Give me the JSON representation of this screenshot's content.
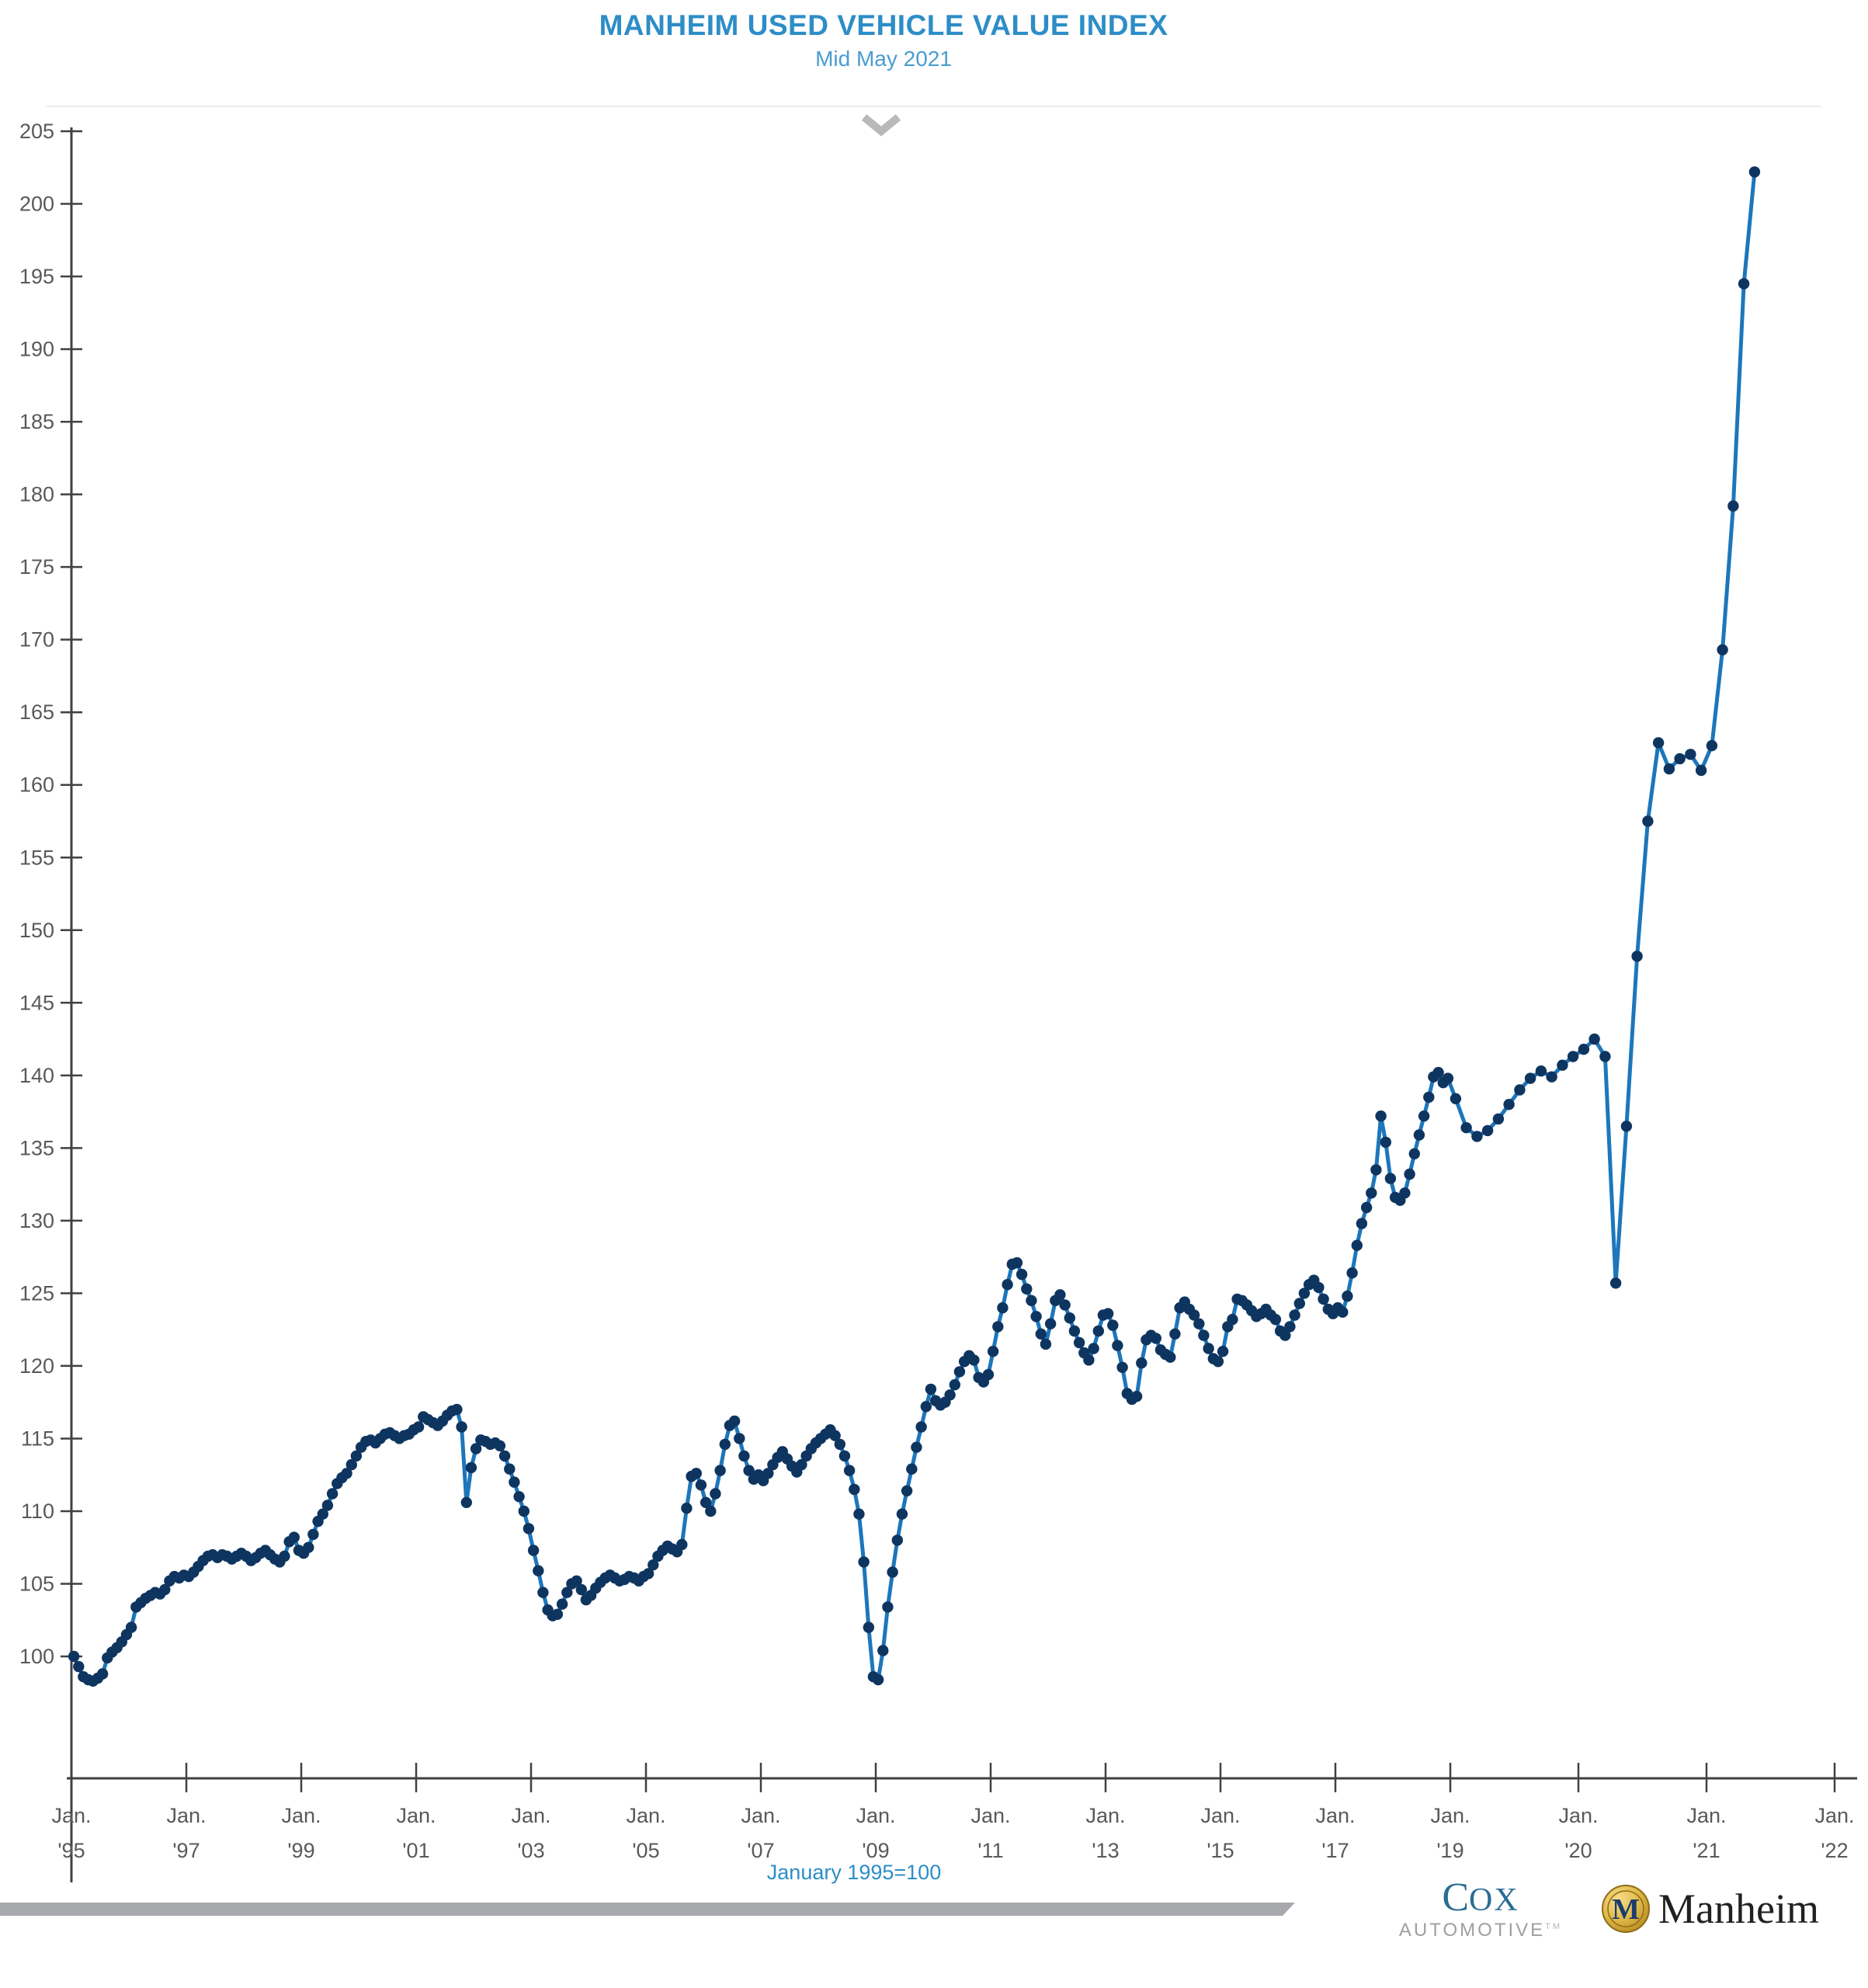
{
  "header": {
    "title": "MANHEIM USED VEHICLE VALUE INDEX",
    "subtitle": "Mid May 2021"
  },
  "footer": {
    "index_note": "January 1995=100"
  },
  "logos": {
    "cox_line1_initial": "C",
    "cox_line1_rest": "OX",
    "cox_line2": "AUTOMOTIVE",
    "cox_tm": "TM",
    "manheim_medallion_letter": "M",
    "manheim_wordmark": "Manheim"
  },
  "icons": {
    "chevron_down": "chevron-down"
  },
  "colors": {
    "title_blue": "#2d8dc7",
    "subtitle_blue": "#4a9ccf",
    "line_blue": "#1d76bb",
    "dot_navy": "#0e3560",
    "axis_gray": "#414042",
    "tick_text_gray": "#58595b",
    "rule_gray": "#ebebeb",
    "chevron_gray": "#b7b9bb",
    "footer_bar_gray": "#a7a9ac",
    "cox_blue": "#2a6d94",
    "cox_gray": "#9d9fa2",
    "manheim_gold": "#d0a02e",
    "manheim_navy": "#1d3d6b"
  },
  "chart_data": {
    "type": "line",
    "title": "MANHEIM USED VEHICLE VALUE INDEX",
    "subtitle": "Mid May 2021",
    "series_name": "Manheim Used Vehicle Value Index",
    "frequency": "monthly",
    "start": "Jan 1995",
    "end": "Mid May 2021",
    "xlabel": "",
    "ylabel": "Index (January 1995=100)",
    "ylim": [
      91.5,
      205
    ],
    "grid": false,
    "legend": "none",
    "y_ticks": [
      205,
      200,
      195,
      190,
      185,
      180,
      175,
      170,
      165,
      160,
      155,
      150,
      145,
      140,
      135,
      130,
      125,
      120,
      115,
      110,
      105,
      100
    ],
    "x_ticks": [
      {
        "line1": "Jan.",
        "line2": "'95",
        "month": 0
      },
      {
        "line1": "Jan.",
        "line2": "'97",
        "month": 24
      },
      {
        "line1": "Jan.",
        "line2": "'99",
        "month": 48
      },
      {
        "line1": "Jan.",
        "line2": "'01",
        "month": 72
      },
      {
        "line1": "Jan.",
        "line2": "'03",
        "month": 96
      },
      {
        "line1": "Jan.",
        "line2": "'05",
        "month": 120
      },
      {
        "line1": "Jan.",
        "line2": "'07",
        "month": 144
      },
      {
        "line1": "Jan.",
        "line2": "'09",
        "month": 168
      },
      {
        "line1": "Jan.",
        "line2": "'11",
        "month": 192
      },
      {
        "line1": "Jan.",
        "line2": "'13",
        "month": 216
      },
      {
        "line1": "Jan.",
        "line2": "'15",
        "month": 240
      },
      {
        "line1": "Jan.",
        "line2": "'17",
        "month": 264
      },
      {
        "line1": "Jan.",
        "line2": "'19",
        "month": 288
      },
      {
        "line1": "Jan.",
        "line2": "'20",
        "month": 300
      },
      {
        "line1": "Jan.",
        "line2": "'21",
        "month": 312
      },
      {
        "line1": "Jan.",
        "line2": "'22",
        "month": 324
      }
    ],
    "values": [
      100.0,
      99.3,
      98.6,
      98.4,
      98.3,
      98.5,
      98.8,
      99.9,
      100.3,
      100.6,
      101.0,
      101.5,
      102.0,
      103.4,
      103.7,
      104.0,
      104.2,
      104.4,
      104.3,
      104.6,
      105.2,
      105.5,
      105.4,
      105.6,
      105.5,
      105.8,
      106.2,
      106.6,
      106.9,
      107.0,
      106.8,
      107.0,
      106.9,
      106.7,
      106.9,
      107.1,
      106.9,
      106.6,
      106.8,
      107.1,
      107.3,
      107.0,
      106.7,
      106.5,
      106.9,
      107.9,
      108.2,
      107.3,
      107.1,
      107.5,
      108.4,
      109.3,
      109.8,
      110.4,
      111.2,
      111.9,
      112.3,
      112.6,
      113.2,
      113.8,
      114.4,
      114.8,
      114.9,
      114.7,
      115.0,
      115.3,
      115.4,
      115.2,
      115.0,
      115.2,
      115.3,
      115.6,
      115.8,
      116.5,
      116.3,
      116.1,
      115.9,
      116.2,
      116.6,
      116.9,
      117.0,
      115.8,
      110.6,
      113.0,
      114.3,
      114.9,
      114.8,
      114.6,
      114.7,
      114.5,
      113.8,
      112.9,
      112.0,
      111.0,
      110.0,
      108.8,
      107.3,
      105.9,
      104.4,
      103.2,
      102.8,
      102.9,
      103.6,
      104.4,
      105.0,
      105.2,
      104.6,
      103.9,
      104.2,
      104.7,
      105.1,
      105.4,
      105.6,
      105.4,
      105.2,
      105.3,
      105.5,
      105.4,
      105.2,
      105.5,
      105.7,
      106.3,
      106.9,
      107.3,
      107.6,
      107.4,
      107.2,
      107.7,
      110.2,
      112.4,
      112.6,
      111.8,
      110.6,
      110.0,
      111.2,
      112.8,
      114.6,
      115.9,
      116.2,
      115.0,
      113.8,
      112.8,
      112.2,
      112.5,
      112.1,
      112.6,
      113.2,
      113.7,
      114.1,
      113.6,
      113.1,
      112.7,
      113.2,
      113.8,
      114.3,
      114.7,
      115.0,
      115.3,
      115.6,
      115.2,
      114.6,
      113.8,
      112.8,
      111.5,
      109.8,
      106.5,
      102.0,
      98.6,
      98.4,
      100.4,
      103.4,
      105.8,
      108.0,
      109.8,
      111.4,
      112.9,
      114.4,
      115.8,
      117.2,
      118.4,
      117.6,
      117.3,
      117.5,
      118.0,
      118.7,
      119.6,
      120.3,
      120.7,
      120.4,
      119.2,
      118.9,
      119.4,
      121.0,
      122.7,
      124.0,
      125.6,
      127.0,
      127.1,
      126.3,
      125.3,
      124.5,
      123.4,
      122.2,
      121.5,
      122.9,
      124.5,
      124.9,
      124.2,
      123.3,
      122.4,
      121.6,
      120.9,
      120.4,
      121.2,
      122.4,
      123.5,
      123.6,
      122.8,
      121.4,
      119.9,
      118.1,
      117.7,
      117.9,
      120.2,
      121.8,
      122.1,
      121.9,
      121.1,
      120.8,
      120.6,
      122.2,
      124.0,
      124.4,
      123.9,
      123.5,
      122.9,
      122.1,
      121.2,
      120.5,
      120.3,
      121.0,
      122.7,
      123.2,
      124.6,
      124.5,
      124.2,
      123.8,
      123.4,
      123.6,
      123.9,
      123.5,
      123.2,
      122.4,
      122.1,
      122.7,
      123.5,
      124.3,
      125.0,
      125.6,
      125.9,
      125.4,
      124.6,
      123.9,
      123.6,
      124.0,
      123.7,
      124.8,
      126.4,
      128.3,
      129.8,
      130.9,
      131.9,
      133.5,
      137.2,
      135.4,
      132.9,
      131.6,
      131.4,
      131.9,
      133.2,
      134.6,
      135.9,
      137.2,
      138.5,
      139.9,
      140.2,
      139.5,
      139.8,
      138.4,
      136.4,
      135.8,
      136.2,
      137.0,
      138.0,
      139.0,
      139.8,
      140.3,
      139.9,
      140.7,
      141.3,
      141.8,
      142.5,
      141.3,
      125.7,
      136.5,
      148.2,
      157.5,
      162.9,
      161.1,
      161.8,
      162.1,
      161.0,
      162.7,
      169.3,
      179.2,
      194.5,
      202.2
    ],
    "last_point_note": "final value is the mid-May 2021 reading of 202.2"
  }
}
